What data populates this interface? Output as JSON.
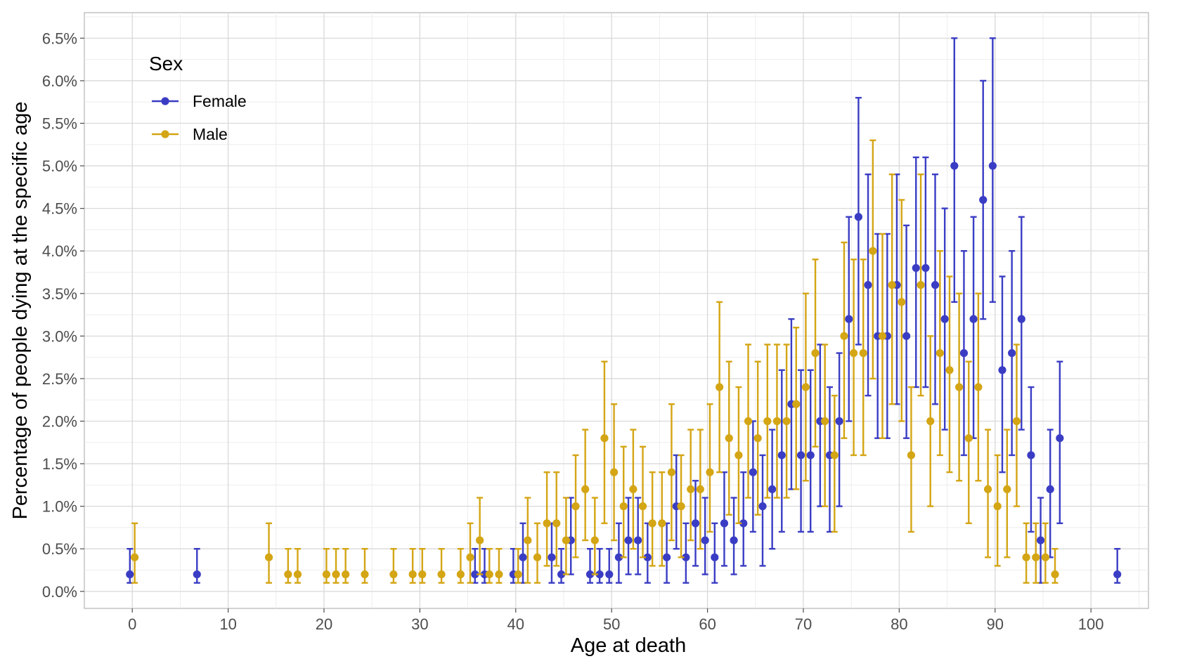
{
  "chart_data": {
    "type": "scatter",
    "title": "",
    "xlabel": "Age at death",
    "ylabel": "Percentage of people dying at the specific age",
    "xlim": [
      -5,
      106
    ],
    "ylim": [
      -0.2,
      6.8
    ],
    "x_ticks": [
      0,
      10,
      20,
      30,
      40,
      50,
      60,
      70,
      80,
      90,
      100
    ],
    "y_ticks": [
      0.0,
      0.5,
      1.0,
      1.5,
      2.0,
      2.5,
      3.0,
      3.5,
      4.0,
      4.5,
      5.0,
      5.5,
      6.0,
      6.5
    ],
    "y_tick_labels": [
      "0.0%",
      "0.5%",
      "1.0%",
      "1.5%",
      "2.0%",
      "2.5%",
      "3.0%",
      "3.5%",
      "4.0%",
      "4.5%",
      "5.0%",
      "5.5%",
      "6.0%",
      "6.5%"
    ],
    "grid": true,
    "error_bars": true,
    "legend": {
      "title": "Sex",
      "position": "top-left"
    },
    "series": [
      {
        "name": "Female",
        "color": "#3a3dc4",
        "points": [
          [
            0,
            0.2,
            0.1,
            0.5
          ],
          [
            7,
            0.2,
            0.1,
            0.5
          ],
          [
            36,
            0.2,
            0.1,
            0.5
          ],
          [
            37,
            0.2,
            0.1,
            0.5
          ],
          [
            40,
            0.2,
            0.1,
            0.5
          ],
          [
            41,
            0.4,
            0.1,
            0.8
          ],
          [
            44,
            0.4,
            0.1,
            0.8
          ],
          [
            45,
            0.2,
            0.1,
            0.5
          ],
          [
            46,
            0.6,
            0.2,
            1.1
          ],
          [
            48,
            0.2,
            0.1,
            0.5
          ],
          [
            49,
            0.2,
            0.1,
            0.5
          ],
          [
            50,
            0.2,
            0.1,
            0.5
          ],
          [
            51,
            0.4,
            0.1,
            0.8
          ],
          [
            52,
            0.6,
            0.2,
            1.1
          ],
          [
            53,
            0.6,
            0.2,
            1.1
          ],
          [
            54,
            0.4,
            0.1,
            0.8
          ],
          [
            56,
            0.4,
            0.1,
            0.8
          ],
          [
            57,
            1.0,
            0.5,
            1.6
          ],
          [
            58,
            0.4,
            0.1,
            0.8
          ],
          [
            59,
            0.8,
            0.3,
            1.3
          ],
          [
            60,
            0.6,
            0.2,
            1.1
          ],
          [
            61,
            0.4,
            0.1,
            0.8
          ],
          [
            62,
            0.8,
            0.3,
            1.4
          ],
          [
            63,
            0.6,
            0.2,
            1.1
          ],
          [
            64,
            0.8,
            0.3,
            1.4
          ],
          [
            65,
            1.4,
            0.7,
            2.0
          ],
          [
            66,
            1.0,
            0.3,
            1.6
          ],
          [
            67,
            1.2,
            0.5,
            1.9
          ],
          [
            68,
            1.6,
            0.7,
            2.6
          ],
          [
            69,
            2.2,
            1.2,
            3.2
          ],
          [
            70,
            1.6,
            0.7,
            2.6
          ],
          [
            71,
            1.6,
            0.7,
            2.6
          ],
          [
            72,
            2.0,
            1.0,
            2.9
          ],
          [
            73,
            1.6,
            0.7,
            2.4
          ],
          [
            74,
            2.0,
            1.0,
            2.8
          ],
          [
            75,
            3.2,
            2.0,
            4.4
          ],
          [
            76,
            4.4,
            2.9,
            5.8
          ],
          [
            77,
            3.6,
            2.3,
            4.9
          ],
          [
            78,
            3.0,
            1.8,
            4.2
          ],
          [
            79,
            3.0,
            1.8,
            4.2
          ],
          [
            80,
            3.6,
            2.2,
            4.9
          ],
          [
            81,
            3.0,
            1.8,
            4.3
          ],
          [
            82,
            3.8,
            2.4,
            5.1
          ],
          [
            83,
            3.8,
            2.4,
            5.1
          ],
          [
            84,
            3.6,
            2.2,
            4.9
          ],
          [
            85,
            3.2,
            1.9,
            4.5
          ],
          [
            86,
            5.0,
            3.4,
            6.5
          ],
          [
            87,
            2.8,
            1.6,
            4.0
          ],
          [
            88,
            3.2,
            1.8,
            4.4
          ],
          [
            89,
            4.6,
            3.2,
            6.0
          ],
          [
            90,
            5.0,
            3.4,
            6.5
          ],
          [
            91,
            2.6,
            1.4,
            3.7
          ],
          [
            92,
            2.8,
            1.6,
            4.0
          ],
          [
            93,
            3.2,
            1.9,
            4.4
          ],
          [
            94,
            1.6,
            0.7,
            2.4
          ],
          [
            95,
            0.6,
            0.1,
            1.1
          ],
          [
            96,
            1.2,
            0.4,
            1.9
          ],
          [
            97,
            1.8,
            0.8,
            2.7
          ],
          [
            103,
            0.2,
            0.1,
            0.5
          ]
        ]
      },
      {
        "name": "Male",
        "color": "#d4a514",
        "points": [
          [
            0,
            0.4,
            0.1,
            0.8
          ],
          [
            14,
            0.4,
            0.1,
            0.8
          ],
          [
            16,
            0.2,
            0.1,
            0.5
          ],
          [
            17,
            0.2,
            0.1,
            0.5
          ],
          [
            20,
            0.2,
            0.1,
            0.5
          ],
          [
            21,
            0.2,
            0.1,
            0.5
          ],
          [
            22,
            0.2,
            0.1,
            0.5
          ],
          [
            24,
            0.2,
            0.1,
            0.5
          ],
          [
            27,
            0.2,
            0.1,
            0.5
          ],
          [
            29,
            0.2,
            0.1,
            0.5
          ],
          [
            30,
            0.2,
            0.1,
            0.5
          ],
          [
            32,
            0.2,
            0.1,
            0.5
          ],
          [
            34,
            0.2,
            0.1,
            0.5
          ],
          [
            35,
            0.4,
            0.1,
            0.8
          ],
          [
            36,
            0.6,
            0.2,
            1.1
          ],
          [
            37,
            0.2,
            0.1,
            0.5
          ],
          [
            38,
            0.2,
            0.1,
            0.5
          ],
          [
            40,
            0.2,
            0.1,
            0.5
          ],
          [
            41,
            0.6,
            0.1,
            1.1
          ],
          [
            42,
            0.4,
            0.1,
            0.8
          ],
          [
            43,
            0.8,
            0.3,
            1.4
          ],
          [
            44,
            0.8,
            0.3,
            1.4
          ],
          [
            45,
            0.6,
            0.2,
            1.1
          ],
          [
            46,
            1.0,
            0.4,
            1.6
          ],
          [
            47,
            1.2,
            0.6,
            1.9
          ],
          [
            48,
            0.6,
            0.2,
            1.1
          ],
          [
            49,
            1.8,
            0.8,
            2.7
          ],
          [
            50,
            1.4,
            0.6,
            2.2
          ],
          [
            51,
            1.0,
            0.4,
            1.7
          ],
          [
            52,
            1.2,
            0.5,
            1.9
          ],
          [
            53,
            1.0,
            0.4,
            1.7
          ],
          [
            54,
            0.8,
            0.3,
            1.4
          ],
          [
            55,
            0.8,
            0.3,
            1.4
          ],
          [
            56,
            1.4,
            0.6,
            2.2
          ],
          [
            57,
            1.0,
            0.4,
            1.6
          ],
          [
            58,
            1.2,
            0.6,
            1.9
          ],
          [
            59,
            1.2,
            0.5,
            1.9
          ],
          [
            60,
            1.4,
            0.7,
            2.2
          ],
          [
            61,
            2.4,
            1.4,
            3.4
          ],
          [
            62,
            1.8,
            0.9,
            2.7
          ],
          [
            63,
            1.6,
            0.8,
            2.4
          ],
          [
            64,
            2.0,
            1.1,
            2.9
          ],
          [
            65,
            1.8,
            0.9,
            2.7
          ],
          [
            66,
            2.0,
            1.1,
            2.9
          ],
          [
            67,
            2.0,
            1.1,
            2.9
          ],
          [
            68,
            2.0,
            1.1,
            2.9
          ],
          [
            69,
            2.2,
            1.2,
            3.1
          ],
          [
            70,
            2.4,
            1.3,
            3.5
          ],
          [
            71,
            2.8,
            1.7,
            3.9
          ],
          [
            72,
            2.0,
            1.0,
            2.9
          ],
          [
            73,
            1.6,
            0.7,
            2.3
          ],
          [
            74,
            3.0,
            1.8,
            4.1
          ],
          [
            75,
            2.8,
            1.6,
            3.9
          ],
          [
            76,
            2.8,
            1.6,
            3.9
          ],
          [
            77,
            4.0,
            2.5,
            5.3
          ],
          [
            78,
            3.0,
            1.8,
            4.2
          ],
          [
            79,
            3.6,
            2.2,
            4.9
          ],
          [
            80,
            3.4,
            2.0,
            4.6
          ],
          [
            81,
            1.6,
            0.7,
            2.4
          ],
          [
            82,
            3.6,
            2.3,
            4.9
          ],
          [
            83,
            2.0,
            1.0,
            3.0
          ],
          [
            84,
            2.8,
            1.6,
            4.0
          ],
          [
            85,
            2.6,
            1.4,
            3.7
          ],
          [
            86,
            2.4,
            1.3,
            3.5
          ],
          [
            87,
            1.8,
            0.8,
            2.7
          ],
          [
            88,
            2.4,
            1.3,
            3.5
          ],
          [
            89,
            1.2,
            0.4,
            1.9
          ],
          [
            90,
            1.0,
            0.3,
            1.6
          ],
          [
            91,
            1.2,
            0.4,
            1.9
          ],
          [
            92,
            2.0,
            1.0,
            2.9
          ],
          [
            93,
            0.4,
            0.1,
            0.8
          ],
          [
            94,
            0.4,
            0.1,
            0.8
          ],
          [
            95,
            0.4,
            0.1,
            0.8
          ],
          [
            96,
            0.2,
            0.1,
            0.5
          ]
        ]
      }
    ]
  }
}
